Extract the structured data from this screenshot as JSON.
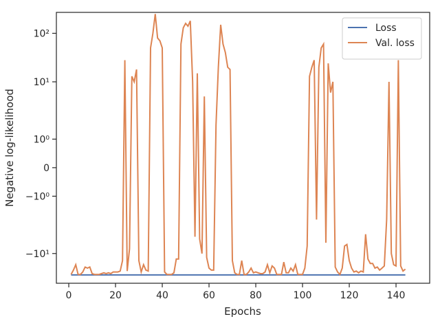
{
  "chart_data": {
    "type": "line",
    "xlabel": "Epochs",
    "ylabel": "Negative log-likelihood",
    "yscale": "symlog",
    "xlim": [
      -5.3,
      154.4
    ],
    "xticks": [
      0,
      20,
      40,
      60,
      80,
      100,
      120,
      140
    ],
    "ylim": [
      -41,
      270
    ],
    "yticks": [
      {
        "value": -10,
        "label": "−10¹"
      },
      {
        "value": -1,
        "label": "−10⁰"
      },
      0,
      {
        "value": 1,
        "label": "10⁰"
      },
      {
        "value": 10,
        "label": "10¹"
      },
      {
        "value": 100,
        "label": "10²"
      }
    ],
    "legend": "upper right",
    "x": [
      1,
      2,
      3,
      4,
      5,
      6,
      7,
      8,
      9,
      10,
      11,
      12,
      13,
      14,
      15,
      16,
      17,
      18,
      19,
      20,
      21,
      22,
      23,
      24,
      25,
      26,
      27,
      28,
      29,
      30,
      31,
      32,
      33,
      34,
      35,
      36,
      37,
      38,
      39,
      40,
      41,
      42,
      43,
      44,
      45,
      46,
      47,
      48,
      49,
      50,
      51,
      52,
      53,
      54,
      55,
      56,
      57,
      58,
      59,
      60,
      61,
      62,
      63,
      64,
      65,
      66,
      67,
      68,
      69,
      70,
      71,
      72,
      73,
      74,
      75,
      76,
      77,
      78,
      79,
      80,
      81,
      82,
      83,
      84,
      85,
      86,
      87,
      88,
      89,
      90,
      91,
      92,
      93,
      94,
      95,
      96,
      97,
      98,
      99,
      100,
      101,
      102,
      103,
      104,
      105,
      106,
      107,
      108,
      109,
      110,
      111,
      112,
      113,
      114,
      115,
      116,
      117,
      118,
      119,
      120,
      121,
      122,
      123,
      124,
      125,
      126,
      127,
      128,
      129,
      130,
      131,
      132,
      133,
      134,
      135,
      136,
      137,
      138,
      139,
      140,
      141,
      142,
      143,
      144
    ],
    "series": [
      {
        "name": "Loss",
        "color": "#4c72b0",
        "values": [
          -27.6,
          -27.6,
          -27.6,
          -27.6,
          -27.6,
          -27.6,
          -27.6,
          -27.6,
          -27.6,
          -27.6,
          -27.6,
          -27.6,
          -27.6,
          -27.6,
          -27.6,
          -27.6,
          -27.6,
          -27.6,
          -27.6,
          -27.6,
          -27.6,
          -27.6,
          -27.6,
          -27.6,
          -27.6,
          -27.6,
          -27.6,
          -27.6,
          -27.6,
          -27.6,
          -27.6,
          -27.6,
          -27.6,
          -27.6,
          -27.6,
          -27.6,
          -27.6,
          -27.6,
          -27.6,
          -27.6,
          -27.6,
          -27.6,
          -27.6,
          -27.6,
          -27.6,
          -27.6,
          -27.6,
          -27.6,
          -27.6,
          -27.6,
          -27.6,
          -27.6,
          -27.6,
          -27.6,
          -27.6,
          -27.6,
          -27.6,
          -27.6,
          -27.6,
          -27.6,
          -27.6,
          -27.6,
          -27.6,
          -27.6,
          -27.6,
          -27.6,
          -27.6,
          -27.6,
          -27.6,
          -27.6,
          -27.6,
          -27.6,
          -27.6,
          -27.6,
          -27.6,
          -27.6,
          -27.6,
          -27.6,
          -27.6,
          -27.6,
          -27.6,
          -27.6,
          -27.6,
          -27.6,
          -27.6,
          -27.6,
          -27.6,
          -27.6,
          -27.6,
          -27.6,
          -27.6,
          -27.6,
          -27.6,
          -27.6,
          -27.6,
          -27.6,
          -27.6,
          -27.6,
          -27.6,
          -27.6,
          -27.6,
          -27.6,
          -27.6,
          -27.6,
          -27.6,
          -27.6,
          -27.6,
          -27.6,
          -27.6,
          -27.6,
          -27.6,
          -27.6,
          -27.6,
          -27.6,
          -27.6,
          -27.6,
          -27.6,
          -27.6,
          -27.6,
          -27.6,
          -27.6,
          -27.6,
          -27.6,
          -27.6,
          -27.6,
          -27.6,
          -27.6,
          -27.6,
          -27.6,
          -27.6,
          -27.6,
          -27.6,
          -27.6,
          -27.6,
          -27.6,
          -27.6,
          -27.6,
          -27.6,
          -27.6,
          -27.6,
          -27.6,
          -27.6,
          -27.6,
          -27.6
        ]
      },
      {
        "name": "Val. loss",
        "color": "#dd8452",
        "values": [
          -27,
          -22,
          -17,
          -27,
          -27,
          -24,
          -19,
          -20,
          -19,
          -26,
          -27,
          -27,
          -27,
          -26,
          -25,
          -26,
          -25,
          -26,
          -24,
          -24,
          -24,
          -23,
          -14,
          28,
          -23,
          -8,
          13,
          10,
          18,
          -14,
          -24,
          -17,
          -22,
          -23,
          50,
          100,
          250,
          80,
          70,
          50,
          -24,
          -27,
          -27,
          -27,
          -25,
          -13,
          -13,
          60,
          130,
          160,
          140,
          180,
          10,
          -4.5,
          15,
          -5,
          -10,
          5,
          -12,
          -20,
          -22,
          -22,
          1.5,
          20,
          150,
          60,
          40,
          20,
          18,
          -14,
          -25,
          -27,
          -27,
          -14,
          -27,
          -27,
          -24,
          -20,
          -25,
          -24,
          -25,
          -26,
          -26,
          -24,
          -17,
          -25,
          -18,
          -20,
          -27,
          -27,
          -27,
          -15,
          -25,
          -25,
          -20,
          -23,
          -17,
          -27,
          -27,
          -27,
          -20,
          -7,
          13,
          20,
          28,
          -2,
          20,
          50,
          60,
          -6,
          24,
          6,
          10,
          -19,
          -24,
          -27,
          -20,
          -7,
          -6.5,
          -14,
          -20,
          -24,
          -23,
          -25,
          -23,
          -24,
          -4,
          -13,
          -16,
          -16,
          -20,
          -19,
          -22,
          -20,
          -18,
          -2,
          10,
          -10,
          -17,
          -18,
          28,
          -18,
          -23,
          -21
        ]
      }
    ]
  }
}
